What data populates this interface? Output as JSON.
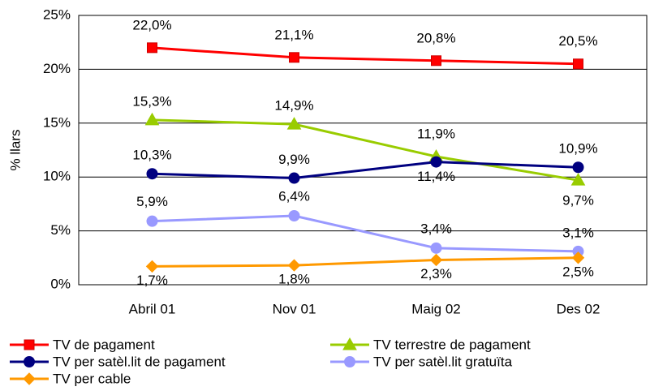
{
  "chart_data": {
    "type": "line",
    "y_label": "% llars",
    "categories": [
      "Abril 01",
      "Nov 01",
      "Maig 02",
      "Des 02"
    ],
    "ylim": [
      0,
      25
    ],
    "yticks": [
      {
        "value": 0,
        "label": "0%"
      },
      {
        "value": 5,
        "label": "5%"
      },
      {
        "value": 10,
        "label": "10%"
      },
      {
        "value": 15,
        "label": "15%"
      },
      {
        "value": 20,
        "label": "20%"
      },
      {
        "value": 25,
        "label": "25%"
      }
    ],
    "grid": true,
    "legend": "bottom",
    "series": [
      {
        "name": "TV de pagament",
        "color": "#ff0000",
        "marker": "square",
        "values": [
          22.0,
          21.1,
          20.8,
          20.5
        ],
        "value_labels": [
          "22,0%",
          "21,1%",
          "20,8%",
          "20,5%"
        ]
      },
      {
        "name": "TV terrestre de pagament",
        "color": "#99cc00",
        "marker": "triangle",
        "values": [
          15.3,
          14.9,
          11.9,
          9.7
        ],
        "value_labels": [
          "15,3%",
          "14,9%",
          "11,9%",
          "9,7%"
        ]
      },
      {
        "name": "TV per satèl.lit de pagament",
        "color": "#000080",
        "marker": "circle",
        "values": [
          10.3,
          9.9,
          11.4,
          10.9
        ],
        "value_labels": [
          "10,3%",
          "9,9%",
          "11,4%",
          "10,9%"
        ]
      },
      {
        "name": "TV per satèl.lit gratuïta",
        "color": "#9999ff",
        "marker": "circle",
        "values": [
          5.9,
          6.4,
          3.4,
          3.1
        ],
        "value_labels": [
          "5,9%",
          "6,4%",
          "3,4%",
          "3,1%"
        ]
      },
      {
        "name": "TV per cable",
        "color": "#ff9900",
        "marker": "diamond",
        "values": [
          1.7,
          1.8,
          2.3,
          2.5
        ],
        "value_labels": [
          "1,7%",
          "1,8%",
          "2,3%",
          "2,5%"
        ]
      }
    ]
  }
}
